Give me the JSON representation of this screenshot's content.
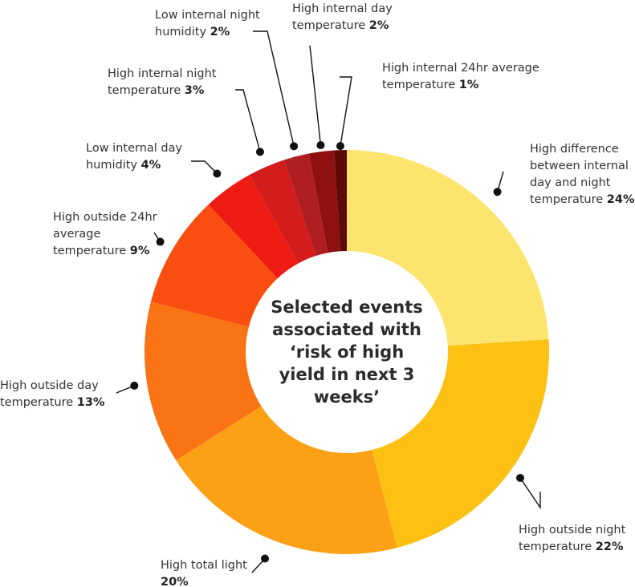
{
  "chart_data": {
    "type": "pie",
    "subtype": "donut",
    "title": "Selected events associated with ‘risk of high yield in next 3 weeks’",
    "center_title_lines": [
      "Selected events",
      "associated with",
      "‘risk of high",
      "yield in next 3",
      "weeks’"
    ],
    "slices": [
      {
        "label": "High difference between internal day and night temperature",
        "label_lines": [
          "High difference",
          "between internal",
          "day and night",
          "temperature"
        ],
        "value": 24,
        "display": "24%",
        "color": "#FDE46E"
      },
      {
        "label": "High outside night temperature",
        "label_lines": [
          "High outside night",
          "temperature"
        ],
        "value": 22,
        "display": "22%",
        "color": "#FDC114"
      },
      {
        "label": "High total light",
        "label_lines": [
          "High total light"
        ],
        "value_on_new_line": true,
        "value": 20,
        "display": "20%",
        "color": "#FCA016"
      },
      {
        "label": "High outside day temperature",
        "label_lines": [
          "High outside day",
          "temperature"
        ],
        "value": 13,
        "display": "13%",
        "color": "#FA7416"
      },
      {
        "label": "High outside 24hr average temperature",
        "label_lines": [
          "High outside 24hr",
          "average",
          "temperature"
        ],
        "value": 9,
        "display": "9%",
        "color": "#FA4E11"
      },
      {
        "label": "Low internal day humidity",
        "label_lines": [
          "Low internal day",
          "humidity"
        ],
        "value": 4,
        "display": "4%",
        "color": "#EF1C13"
      },
      {
        "label": "High internal night temperature",
        "label_lines": [
          "High internal night",
          "temperature"
        ],
        "value": 3,
        "display": "3%",
        "color": "#D41C1C"
      },
      {
        "label": "Low internal night humidity",
        "label_lines": [
          "Low internal night",
          "humidity"
        ],
        "value": 2,
        "display": "2%",
        "color": "#B01E22"
      },
      {
        "label": "High internal day temperature",
        "label_lines": [
          "High internal day",
          "temperature"
        ],
        "value": 2,
        "display": "2%",
        "color": "#8E1010"
      },
      {
        "label": "High internal 24hr average temperature",
        "label_lines": [
          "High internal 24hr average",
          "temperature"
        ],
        "value": 1,
        "display": "1%",
        "color": "#5C0A0A"
      }
    ]
  }
}
